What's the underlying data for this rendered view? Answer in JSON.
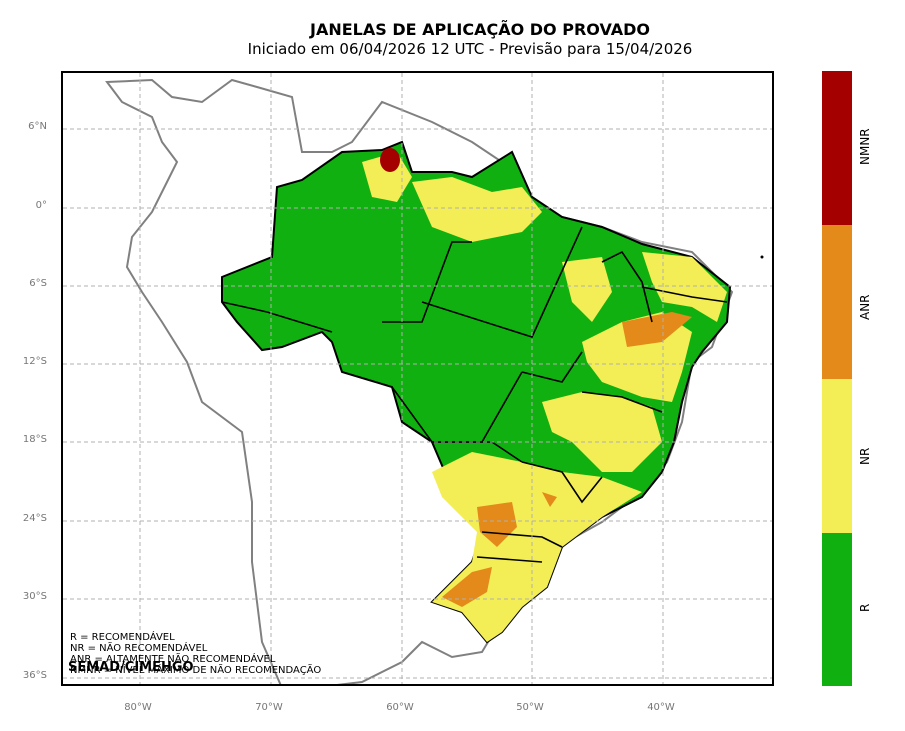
{
  "header": {
    "title": "JANELAS DE APLICAÇÃO DO PROVADO",
    "subtitle": "Iniciado em 06/04/2026 12 UTC - Previsão para 15/04/2026"
  },
  "map": {
    "lat_ticks": [
      "6°N",
      "0°",
      "6°S",
      "12°S",
      "18°S",
      "24°S",
      "30°S",
      "36°S"
    ],
    "lon_ticks": [
      "80°W",
      "70°W",
      "60°W",
      "50°W",
      "40°W"
    ],
    "grid": "dashed"
  },
  "legend": {
    "lines": [
      "R = RECOMENDÁVEL",
      "NR = NÃO RECOMENDÁVEL",
      "ANR = ALTAMENTE NÃO RECOMENDÁVEL",
      "NMNR = NÍVEL MÁXIMO DE NÃO RECOMENDAÇÃO"
    ],
    "credit": "SEMAD/CIMEHGO"
  },
  "colorbar": {
    "categories": [
      {
        "code": "NMNR",
        "color": "#a50000"
      },
      {
        "code": "ANR",
        "color": "#e38a1a"
      },
      {
        "code": "NR",
        "color": "#f3ee55"
      },
      {
        "code": "R",
        "color": "#10b010"
      }
    ]
  }
}
